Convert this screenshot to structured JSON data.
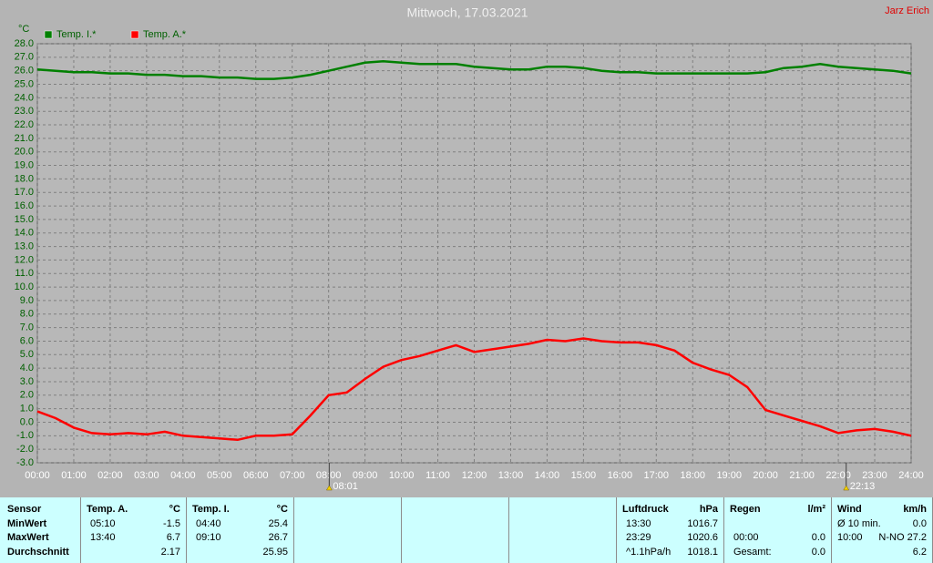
{
  "chart_data": {
    "type": "line",
    "title": "Mittwoch, 17.03.2021",
    "author": "Jarz Erich",
    "y_label": "°C",
    "grid": true,
    "x": [
      0,
      0.5,
      1,
      1.5,
      2,
      2.5,
      3,
      3.5,
      4,
      4.5,
      5,
      5.5,
      6,
      6.5,
      7,
      7.5,
      8,
      8.5,
      9,
      9.5,
      10,
      10.5,
      11,
      11.5,
      12,
      12.5,
      13,
      13.5,
      14,
      14.5,
      15,
      15.5,
      16,
      16.5,
      17,
      17.5,
      18,
      18.5,
      19,
      19.5,
      20,
      20.5,
      21,
      21.5,
      22,
      22.5,
      23,
      23.5,
      24
    ],
    "series": [
      {
        "name": "Temp. I.*",
        "color": "#008000",
        "values": [
          26.1,
          26.0,
          25.9,
          25.9,
          25.8,
          25.8,
          25.7,
          25.7,
          25.6,
          25.6,
          25.5,
          25.5,
          25.4,
          25.4,
          25.5,
          25.7,
          26.0,
          26.3,
          26.6,
          26.7,
          26.6,
          26.5,
          26.5,
          26.5,
          26.3,
          26.2,
          26.1,
          26.1,
          26.3,
          26.3,
          26.2,
          26.0,
          25.9,
          25.9,
          25.8,
          25.8,
          25.8,
          25.8,
          25.8,
          25.8,
          25.9,
          26.2,
          26.3,
          26.5,
          26.3,
          26.2,
          26.1,
          26.0,
          25.8
        ]
      },
      {
        "name": "Temp. A.*",
        "color": "#ff0000",
        "values": [
          0.8,
          0.3,
          -0.4,
          -0.8,
          -0.9,
          -0.8,
          -0.9,
          -0.7,
          -1.0,
          -1.1,
          -1.2,
          -1.3,
          -1.0,
          -1.0,
          -0.9,
          0.5,
          2.0,
          2.2,
          3.2,
          4.1,
          4.6,
          4.9,
          5.3,
          5.7,
          5.2,
          5.4,
          5.6,
          5.8,
          6.1,
          6.0,
          6.2,
          6.0,
          5.9,
          5.9,
          5.7,
          5.3,
          4.4,
          3.9,
          3.5,
          2.6,
          0.9,
          0.5,
          0.1,
          -0.3,
          -0.8,
          -0.6,
          -0.5,
          -0.7,
          -1.0
        ]
      }
    ],
    "xlim": [
      0,
      24
    ],
    "xticks": [
      {
        "value": 0,
        "label": "00:00"
      },
      {
        "value": 1,
        "label": "01:00"
      },
      {
        "value": 2,
        "label": "02:00"
      },
      {
        "value": 3,
        "label": "03:00"
      },
      {
        "value": 4,
        "label": "04:00"
      },
      {
        "value": 5,
        "label": "05:00"
      },
      {
        "value": 6,
        "label": "06:00"
      },
      {
        "value": 7,
        "label": "07:00"
      },
      {
        "value": 8,
        "label": "08:00"
      },
      {
        "value": 9,
        "label": "09:00"
      },
      {
        "value": 10,
        "label": "10:00"
      },
      {
        "value": 11,
        "label": "11:00"
      },
      {
        "value": 12,
        "label": "12:00"
      },
      {
        "value": 13,
        "label": "13:00"
      },
      {
        "value": 14,
        "label": "14:00"
      },
      {
        "value": 15,
        "label": "15:00"
      },
      {
        "value": 16,
        "label": "16:00"
      },
      {
        "value": 17,
        "label": "17:00"
      },
      {
        "value": 18,
        "label": "18:00"
      },
      {
        "value": 19,
        "label": "19:00"
      },
      {
        "value": 20,
        "label": "20:00"
      },
      {
        "value": 21,
        "label": "21:00"
      },
      {
        "value": 22,
        "label": "22:00"
      },
      {
        "value": 23,
        "label": "23:00"
      },
      {
        "value": 24,
        "label": "24:00"
      }
    ],
    "ylim": [
      -3,
      28
    ],
    "yticks": [
      {
        "value": -3,
        "label": "-3.0"
      },
      {
        "value": -2,
        "label": "-2.0"
      },
      {
        "value": -1,
        "label": "-1.0"
      },
      {
        "value": 0,
        "label": "0.0"
      },
      {
        "value": 1,
        "label": "1.0"
      },
      {
        "value": 2,
        "label": "2.0"
      },
      {
        "value": 3,
        "label": "3.0"
      },
      {
        "value": 4,
        "label": "4.0"
      },
      {
        "value": 5,
        "label": "5.0"
      },
      {
        "value": 6,
        "label": "6.0"
      },
      {
        "value": 7,
        "label": "7.0"
      },
      {
        "value": 8,
        "label": "8.0"
      },
      {
        "value": 9,
        "label": "9.0"
      },
      {
        "value": 10,
        "label": "10.0"
      },
      {
        "value": 11,
        "label": "11.0"
      },
      {
        "value": 12,
        "label": "12.0"
      },
      {
        "value": 13,
        "label": "13.0"
      },
      {
        "value": 14,
        "label": "14.0"
      },
      {
        "value": 15,
        "label": "15.0"
      },
      {
        "value": 16,
        "label": "16.0"
      },
      {
        "value": 17,
        "label": "17.0"
      },
      {
        "value": 18,
        "label": "18.0"
      },
      {
        "value": 19,
        "label": "19.0"
      },
      {
        "value": 20,
        "label": "20.0"
      },
      {
        "value": 21,
        "label": "21.0"
      },
      {
        "value": 22,
        "label": "22.0"
      },
      {
        "value": 23,
        "label": "23.0"
      },
      {
        "value": 24,
        "label": "24.0"
      },
      {
        "value": 25,
        "label": "25.0"
      },
      {
        "value": 26,
        "label": "26.0"
      },
      {
        "value": 27,
        "label": "27.0"
      },
      {
        "value": 28,
        "label": "28.0"
      }
    ],
    "annotations": [
      {
        "x": 8.0167,
        "text": "08:01"
      },
      {
        "x": 22.2167,
        "text": "22:13"
      }
    ]
  },
  "stats": {
    "labels": [
      "Sensor",
      "MinWert",
      "MaxWert",
      "Durchschnitt"
    ],
    "panels": [
      {
        "title": "Temp. A.",
        "unit": "°C",
        "rows": [
          [
            "05:10",
            "-1.5"
          ],
          [
            "13:40",
            "6.7"
          ],
          [
            null,
            "2.17"
          ]
        ]
      },
      {
        "title": "Temp. I.",
        "unit": "°C",
        "rows": [
          [
            "04:40",
            "25.4"
          ],
          [
            "09:10",
            "26.7"
          ],
          [
            null,
            "25.95"
          ]
        ]
      },
      {
        "title": "Luftdruck",
        "unit": "hPa",
        "rows": [
          [
            "13:30",
            "1016.7"
          ],
          [
            "23:29",
            "1020.6"
          ],
          [
            "^1.1hPa/h",
            "1018.1"
          ]
        ]
      },
      {
        "title": "Regen",
        "unit": "l/m²",
        "rows": [
          [
            null,
            null
          ],
          [
            "00:00",
            "0.0"
          ],
          [
            "Gesamt:",
            "0.0"
          ]
        ]
      },
      {
        "title": "Wind",
        "unit": "km/h",
        "rows": [
          [
            "Ø 10 min.",
            "0.0"
          ],
          [
            "10:00",
            "N-NO 27.2"
          ],
          [
            null,
            "6.2"
          ]
        ]
      }
    ]
  }
}
